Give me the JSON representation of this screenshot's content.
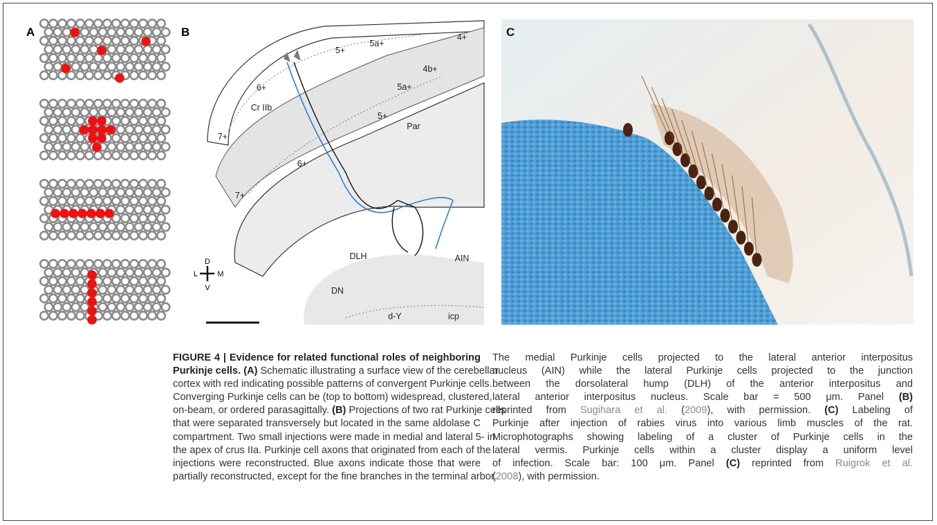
{
  "panels": {
    "a": {
      "label": "A"
    },
    "b": {
      "label": "B",
      "regions": [
        "5+",
        "5a+",
        "4+",
        "4b+",
        "5a+",
        "6+",
        "Cr IIb",
        "5+",
        "Par",
        "7+",
        "6+",
        "7+",
        "DLH",
        "AIN",
        "DN",
        "d-Y",
        "icp"
      ],
      "compass": {
        "d": "D",
        "l": "L",
        "m": "M",
        "v": "V"
      }
    },
    "c": {
      "label": "C"
    }
  },
  "caption": {
    "left": [
      [
        {
          "text": "FIGURE 4 | Evidence for related functional roles of neighboring",
          "style": "bold"
        }
      ],
      [
        {
          "text": "Purkinje cells. (A)",
          "style": "bold"
        },
        {
          "text": " Schematic illustrating a surface view of the cerebellar",
          "style": "plain"
        }
      ],
      [
        {
          "text": "cortex with red indicating possible patterns of convergent Purkinje cells.",
          "style": "plain"
        }
      ],
      [
        {
          "text": "Converging Purkinje cells can be (top to bottom) widespread, clustered,",
          "style": "plain"
        }
      ],
      [
        {
          "text": "on-beam, or ordered parasagittally. ",
          "style": "plain"
        },
        {
          "text": "(B)",
          "style": "bold"
        },
        {
          "text": " Projections of two rat Purkinje cells",
          "style": "plain"
        }
      ],
      [
        {
          "text": "that were separated transversely but located in the same aldolase C",
          "style": "plain"
        }
      ],
      [
        {
          "text": "compartment. Two small injections were made in medial and lateral 5- in",
          "style": "plain"
        }
      ],
      [
        {
          "text": "the apex of crus IIa. Purkinje cell axons that originated from each of the",
          "style": "plain"
        }
      ],
      [
        {
          "text": "injections were reconstructed. Blue axons indicate those that were",
          "style": "plain"
        }
      ],
      [
        {
          "text": "partially reconstructed, except for the fine branches in the terminal arbor.",
          "style": "plain"
        }
      ]
    ],
    "right": [
      [
        {
          "text": "The medial Purkinje cells projected to the lateral anterior interpositus",
          "style": "plain"
        }
      ],
      [
        {
          "text": "nucleus (AIN) while the lateral Purkinje cells projected to the junction",
          "style": "plain"
        }
      ],
      [
        {
          "text": "between the dorsolateral hump (DLH) of the anterior interpositus and",
          "style": "plain"
        }
      ],
      [
        {
          "text": "lateral anterior interpositus nucleus. Scale bar = 500 μm. Panel ",
          "style": "plain"
        },
        {
          "text": "(B)",
          "style": "bold"
        }
      ],
      [
        {
          "text": "reprinted from ",
          "style": "plain"
        },
        {
          "text": "Sugihara et al.",
          "style": "link"
        },
        {
          "text": " (",
          "style": "plain"
        },
        {
          "text": "2009",
          "style": "link"
        },
        {
          "text": "), with permission. ",
          "style": "plain"
        },
        {
          "text": "(C)",
          "style": "bold"
        },
        {
          "text": " Labeling of",
          "style": "plain"
        }
      ],
      [
        {
          "text": "Purkinje after injection of rabies virus into various limb muscles of the rat.",
          "style": "plain"
        }
      ],
      [
        {
          "text": "Microphotographs showing labeling of a cluster of Purkinje cells in the",
          "style": "plain"
        }
      ],
      [
        {
          "text": "lateral vermis. Purkinje cells within a cluster display a uniform level",
          "style": "plain"
        }
      ],
      [
        {
          "text": "of infection. Scale bar: 100 μm. Panel ",
          "style": "plain"
        },
        {
          "text": "(C)",
          "style": "bold"
        },
        {
          "text": " reprinted from ",
          "style": "plain"
        },
        {
          "text": "Ruigrok et al.",
          "style": "link"
        }
      ],
      [
        {
          "text": "(",
          "style": "plain"
        },
        {
          "text": "2008",
          "style": "link"
        },
        {
          "text": "), with permission.",
          "style": "plain"
        }
      ]
    ]
  }
}
